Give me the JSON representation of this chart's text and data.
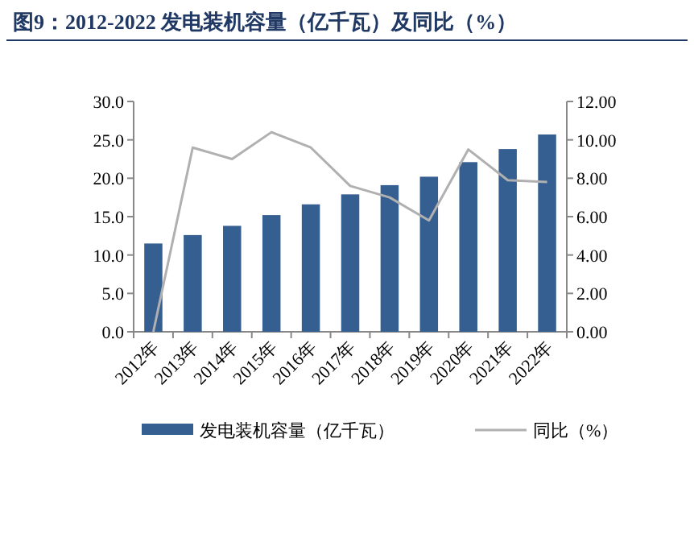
{
  "chart_data": {
    "type": "bar",
    "title": "图9：2012-2022 发电装机容量（亿千瓦）及同比（%）",
    "categories": [
      "2012年",
      "2013年",
      "2014年",
      "2015年",
      "2016年",
      "2017年",
      "2018年",
      "2019年",
      "2020年",
      "2021年",
      "2022年"
    ],
    "series": [
      {
        "name": "发电装机容量（亿千瓦）",
        "color": "#365f91",
        "values": [
          11.5,
          12.6,
          13.8,
          15.2,
          16.6,
          17.9,
          19.1,
          20.2,
          22.1,
          23.8,
          25.7
        ]
      },
      {
        "name": "同比（%）",
        "type": "line",
        "axis": "y2",
        "color": "#b0b0b0",
        "values": [
          0.0,
          9.6,
          9.0,
          10.4,
          9.6,
          7.6,
          7.0,
          5.8,
          9.5,
          7.9,
          7.8
        ]
      }
    ],
    "ylim": [
      0,
      30
    ],
    "yticks": [
      {
        "value": 0,
        "label": "0.0"
      },
      {
        "value": 5,
        "label": "5.0"
      },
      {
        "value": 10,
        "label": "10.0"
      },
      {
        "value": 15,
        "label": "15.0"
      },
      {
        "value": 20,
        "label": "20.0"
      },
      {
        "value": 25,
        "label": "25.0"
      },
      {
        "value": 30,
        "label": "30.0"
      }
    ],
    "y2lim": [
      0,
      12
    ],
    "y2ticks": [
      {
        "value": 0,
        "label": "0.00"
      },
      {
        "value": 2,
        "label": "2.00"
      },
      {
        "value": 4,
        "label": "4.00"
      },
      {
        "value": 6,
        "label": "6.00"
      },
      {
        "value": 8,
        "label": "8.00"
      },
      {
        "value": 10,
        "label": "10.00"
      },
      {
        "value": 12,
        "label": "12.00"
      }
    ],
    "grid": false,
    "legend": "bottom",
    "marker": "none"
  }
}
